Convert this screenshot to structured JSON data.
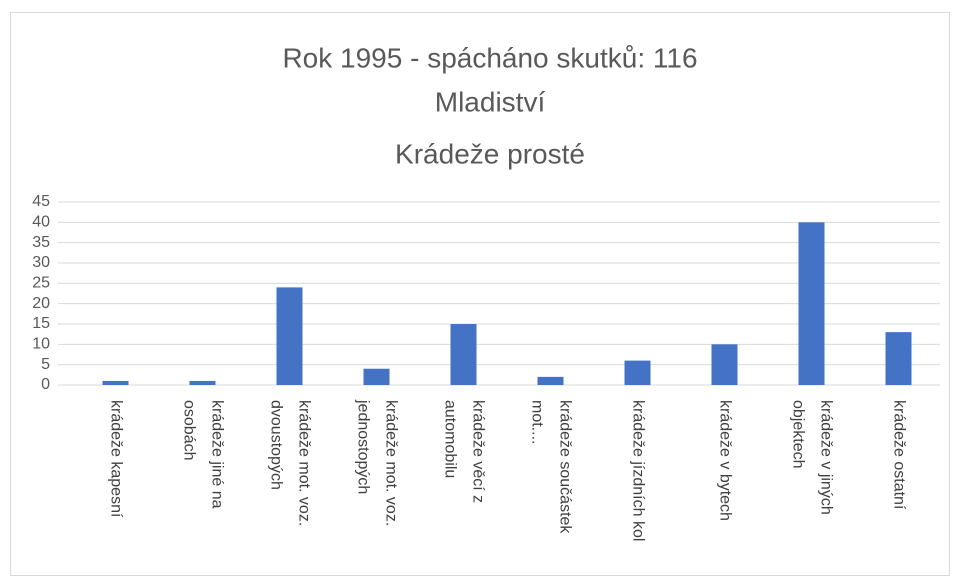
{
  "chart_data": {
    "type": "bar",
    "title": [
      "Rok 1995 - spácháno skutků: 116",
      "Mladiství",
      "Krádeže prosté"
    ],
    "categories": [
      "krádeže kapesní",
      "krádeže jiné na osobách",
      "krádeže mot. voz. dvoustopých",
      "krádeže mot. voz. jednostopých",
      "krádeže věcí z automobilu",
      "krádeže součástek mot....",
      "krádeže jízdních kol",
      "krádeže v bytech",
      "krádeže v jiných objektech",
      "krádeže ostatní"
    ],
    "values": [
      1,
      1,
      24,
      4,
      15,
      2,
      6,
      10,
      40,
      13
    ],
    "color": "#4472c4",
    "ylim": [
      0,
      45
    ],
    "yticks": [
      0,
      5,
      10,
      15,
      20,
      25,
      30,
      35,
      40,
      45
    ],
    "grid": true
  }
}
